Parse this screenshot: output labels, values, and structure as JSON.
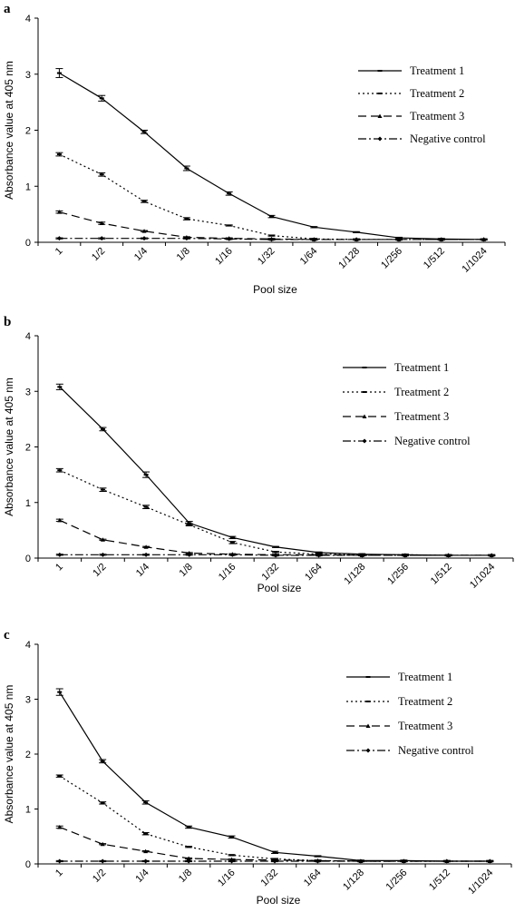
{
  "chart_data": [
    {
      "panel": "a",
      "type": "line",
      "xlabel": "Pool size",
      "ylabel": "Absorbance value at 405 nm",
      "ylim": [
        0,
        4
      ],
      "yticks": [
        "0",
        "1",
        "2",
        "3",
        "4"
      ],
      "categories": [
        "1",
        "1/2",
        "1/4",
        "1/8",
        "1/16",
        "1/32",
        "1/64",
        "1/128",
        "1/256",
        "1/512",
        "1/1024"
      ],
      "legend_position": "right",
      "grid": false,
      "series": [
        {
          "name": "Treatment 1",
          "values": [
            3.02,
            2.57,
            1.97,
            1.32,
            0.87,
            0.46,
            0.27,
            0.18,
            0.08,
            0.06,
            0.05
          ],
          "errors": [
            0.08,
            0.05,
            0.03,
            0.04,
            0.03,
            0.02,
            0.01,
            0.01,
            0.01,
            0.01,
            0.01
          ]
        },
        {
          "name": "Treatment 2",
          "values": [
            1.57,
            1.21,
            0.73,
            0.42,
            0.3,
            0.12,
            0.06,
            0.05,
            0.05,
            0.05,
            0.05
          ],
          "errors": [
            0.03,
            0.03,
            0.02,
            0.02,
            0.01,
            0.01,
            0.01,
            0.01,
            0.01,
            0.01,
            0.01
          ]
        },
        {
          "name": "Treatment 3",
          "values": [
            0.54,
            0.34,
            0.2,
            0.09,
            0.07,
            0.06,
            0.05,
            0.05,
            0.05,
            0.05,
            0.05
          ],
          "errors": [
            0.02,
            0.02,
            0.01,
            0.01,
            0.01,
            0.01,
            0.01,
            0.01,
            0.01,
            0.01,
            0.01
          ]
        },
        {
          "name": "Negative control",
          "values": [
            0.07,
            0.07,
            0.07,
            0.07,
            0.06,
            0.05,
            0.05,
            0.05,
            0.05,
            0.05,
            0.05
          ],
          "errors": [
            0.01,
            0.01,
            0.01,
            0.01,
            0.01,
            0.01,
            0.01,
            0.01,
            0.01,
            0.01,
            0.01
          ]
        }
      ]
    },
    {
      "panel": "b",
      "type": "line",
      "xlabel": "Pool size",
      "ylabel": "Absorbance value at 405 nm",
      "ylim": [
        0,
        4
      ],
      "yticks": [
        "0",
        "1",
        "2",
        "3",
        "4"
      ],
      "categories": [
        "1",
        "1/2",
        "1/4",
        "1/8",
        "1/16",
        "1/32",
        "1/64",
        "1/128",
        "1/256",
        "1/512",
        "1/1024"
      ],
      "legend_position": "right",
      "grid": false,
      "series": [
        {
          "name": "Treatment 1",
          "values": [
            3.08,
            2.32,
            1.5,
            0.63,
            0.37,
            0.2,
            0.1,
            0.07,
            0.06,
            0.05,
            0.05
          ],
          "errors": [
            0.05,
            0.03,
            0.05,
            0.03,
            0.02,
            0.01,
            0.01,
            0.01,
            0.01,
            0.01,
            0.01
          ]
        },
        {
          "name": "Treatment 2",
          "values": [
            1.58,
            1.23,
            0.92,
            0.6,
            0.28,
            0.11,
            0.07,
            0.06,
            0.06,
            0.05,
            0.05
          ],
          "errors": [
            0.03,
            0.03,
            0.03,
            0.02,
            0.02,
            0.01,
            0.01,
            0.01,
            0.01,
            0.01,
            0.01
          ]
        },
        {
          "name": "Treatment 3",
          "values": [
            0.68,
            0.33,
            0.2,
            0.09,
            0.07,
            0.06,
            0.06,
            0.05,
            0.05,
            0.05,
            0.05
          ],
          "errors": [
            0.02,
            0.01,
            0.01,
            0.01,
            0.01,
            0.01,
            0.01,
            0.01,
            0.01,
            0.01,
            0.01
          ]
        },
        {
          "name": "Negative control",
          "values": [
            0.06,
            0.06,
            0.06,
            0.06,
            0.06,
            0.05,
            0.05,
            0.05,
            0.05,
            0.05,
            0.05
          ],
          "errors": [
            0.01,
            0.01,
            0.01,
            0.01,
            0.01,
            0.01,
            0.01,
            0.01,
            0.01,
            0.01,
            0.01
          ]
        }
      ]
    },
    {
      "panel": "c",
      "type": "line",
      "xlabel": "Pool size",
      "ylabel": "Absorbance value at 405 nm",
      "ylim": [
        0,
        4
      ],
      "yticks": [
        "0",
        "1",
        "2",
        "3",
        "4"
      ],
      "categories": [
        "1",
        "1/2",
        "1/4",
        "1/8",
        "1/16",
        "1/32",
        "1/64",
        "1/128",
        "1/256",
        "1/512",
        "1/1024"
      ],
      "legend_position": "right",
      "grid": false,
      "series": [
        {
          "name": "Treatment 1",
          "values": [
            3.13,
            1.87,
            1.12,
            0.67,
            0.49,
            0.21,
            0.14,
            0.06,
            0.06,
            0.05,
            0.05
          ],
          "errors": [
            0.06,
            0.03,
            0.03,
            0.02,
            0.02,
            0.02,
            0.01,
            0.01,
            0.01,
            0.01,
            0.01
          ]
        },
        {
          "name": "Treatment 2",
          "values": [
            1.6,
            1.11,
            0.55,
            0.31,
            0.16,
            0.09,
            0.06,
            0.05,
            0.05,
            0.05,
            0.05
          ],
          "errors": [
            0.02,
            0.02,
            0.02,
            0.01,
            0.01,
            0.01,
            0.01,
            0.01,
            0.01,
            0.01,
            0.01
          ]
        },
        {
          "name": "Treatment 3",
          "values": [
            0.67,
            0.36,
            0.23,
            0.1,
            0.08,
            0.07,
            0.06,
            0.05,
            0.05,
            0.05,
            0.05
          ],
          "errors": [
            0.02,
            0.01,
            0.01,
            0.01,
            0.01,
            0.01,
            0.01,
            0.01,
            0.01,
            0.01,
            0.01
          ]
        },
        {
          "name": "Negative control",
          "values": [
            0.05,
            0.05,
            0.05,
            0.05,
            0.05,
            0.05,
            0.05,
            0.05,
            0.05,
            0.05,
            0.05
          ],
          "errors": [
            0.01,
            0.01,
            0.01,
            0.01,
            0.01,
            0.01,
            0.01,
            0.01,
            0.01,
            0.01,
            0.01
          ]
        }
      ]
    }
  ],
  "series_styles": {
    "Treatment 1": {
      "dash": "",
      "marker": "dash",
      "color": "#000000"
    },
    "Treatment 2": {
      "dash": "2,3",
      "marker": "dash",
      "color": "#000000"
    },
    "Treatment 3": {
      "dash": "9,5",
      "marker": "triangle",
      "color": "#000000"
    },
    "Negative control": {
      "dash": "9,3,2,3",
      "marker": "diamond",
      "color": "#000000"
    }
  }
}
